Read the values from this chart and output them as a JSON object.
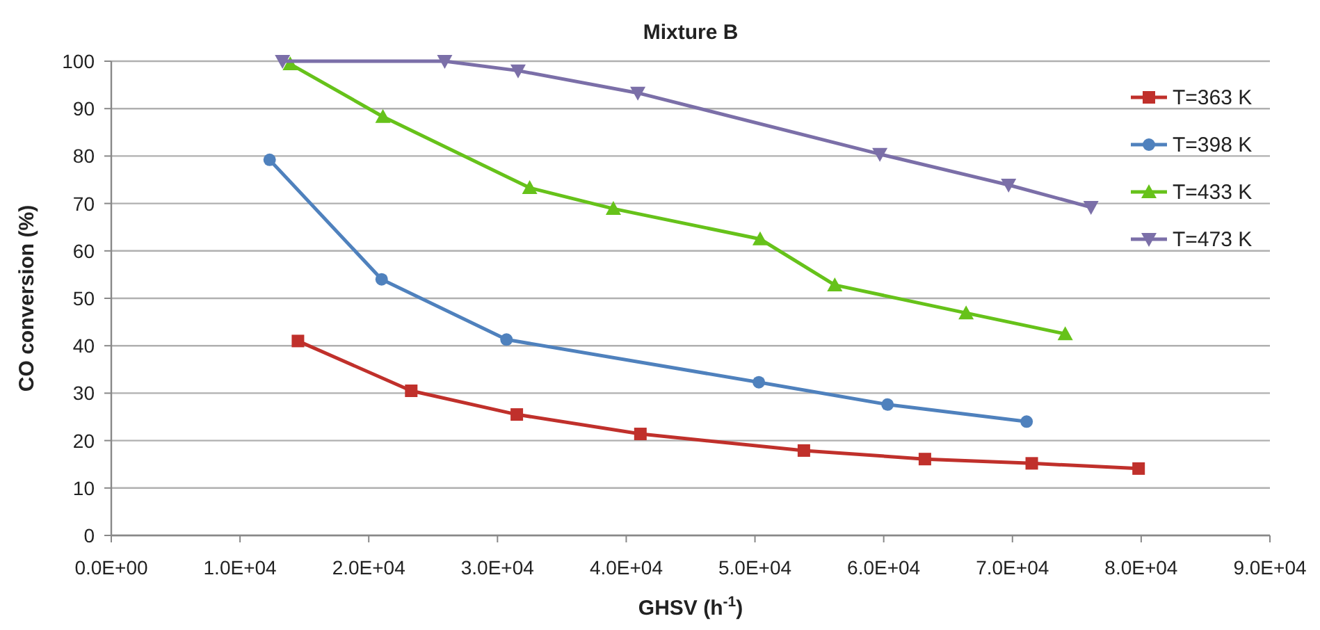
{
  "chart_data": {
    "type": "line",
    "title": "Mixture B",
    "xlabel": "GHSV (h$^{-1}$)",
    "ylabel": "CO conversion (%)",
    "xlim": [
      0,
      90000
    ],
    "xticks": [
      {
        "value": 0,
        "label": "0.0E+00"
      },
      {
        "value": 10000,
        "label": "1.0E+04"
      },
      {
        "value": 20000,
        "label": "2.0E+04"
      },
      {
        "value": 30000,
        "label": "3.0E+04"
      },
      {
        "value": 40000,
        "label": "4.0E+04"
      },
      {
        "value": 50000,
        "label": "5.0E+04"
      },
      {
        "value": 60000,
        "label": "6.0E+04"
      },
      {
        "value": 70000,
        "label": "7.0E+04"
      },
      {
        "value": 80000,
        "label": "8.0E+04"
      },
      {
        "value": 90000,
        "label": "9.0E+04"
      }
    ],
    "ylim": [
      0,
      100
    ],
    "yticks": [
      0,
      10,
      20,
      30,
      40,
      50,
      60,
      70,
      80,
      90,
      100
    ],
    "grid": "y",
    "legend": "top right",
    "line_style": "solid",
    "series": [
      {
        "name": "T=363 K",
        "color": "#c0302b",
        "marker": "square",
        "x": [
          14500,
          23300,
          31500,
          41100,
          53800,
          63200,
          71500,
          79800
        ],
        "values": [
          41,
          30.5,
          25.5,
          21.4,
          17.9,
          16.1,
          15.2,
          14.1
        ]
      },
      {
        "name": "T=398 K",
        "color": "#4f81bd",
        "marker": "circle",
        "x": [
          12300,
          21000,
          30700,
          50300,
          60300,
          71100
        ],
        "values": [
          79.2,
          54,
          41.3,
          32.3,
          27.6,
          24
        ]
      },
      {
        "name": "T=433 K",
        "color": "#66c21a",
        "marker": "triangle",
        "x": [
          13900,
          21100,
          32500,
          39000,
          50400,
          56200,
          66400,
          74100
        ],
        "values": [
          99.4,
          88.3,
          73.3,
          68.9,
          62.5,
          52.8,
          46.9,
          42.5
        ]
      },
      {
        "name": "T=473 K",
        "color": "#7b6fa8",
        "marker": "triangle-down",
        "x": [
          13300,
          25900,
          31600,
          40900,
          59700,
          69700,
          76100
        ],
        "values": [
          100,
          100,
          98,
          93.3,
          80.4,
          73.9,
          69.2
        ]
      }
    ]
  }
}
